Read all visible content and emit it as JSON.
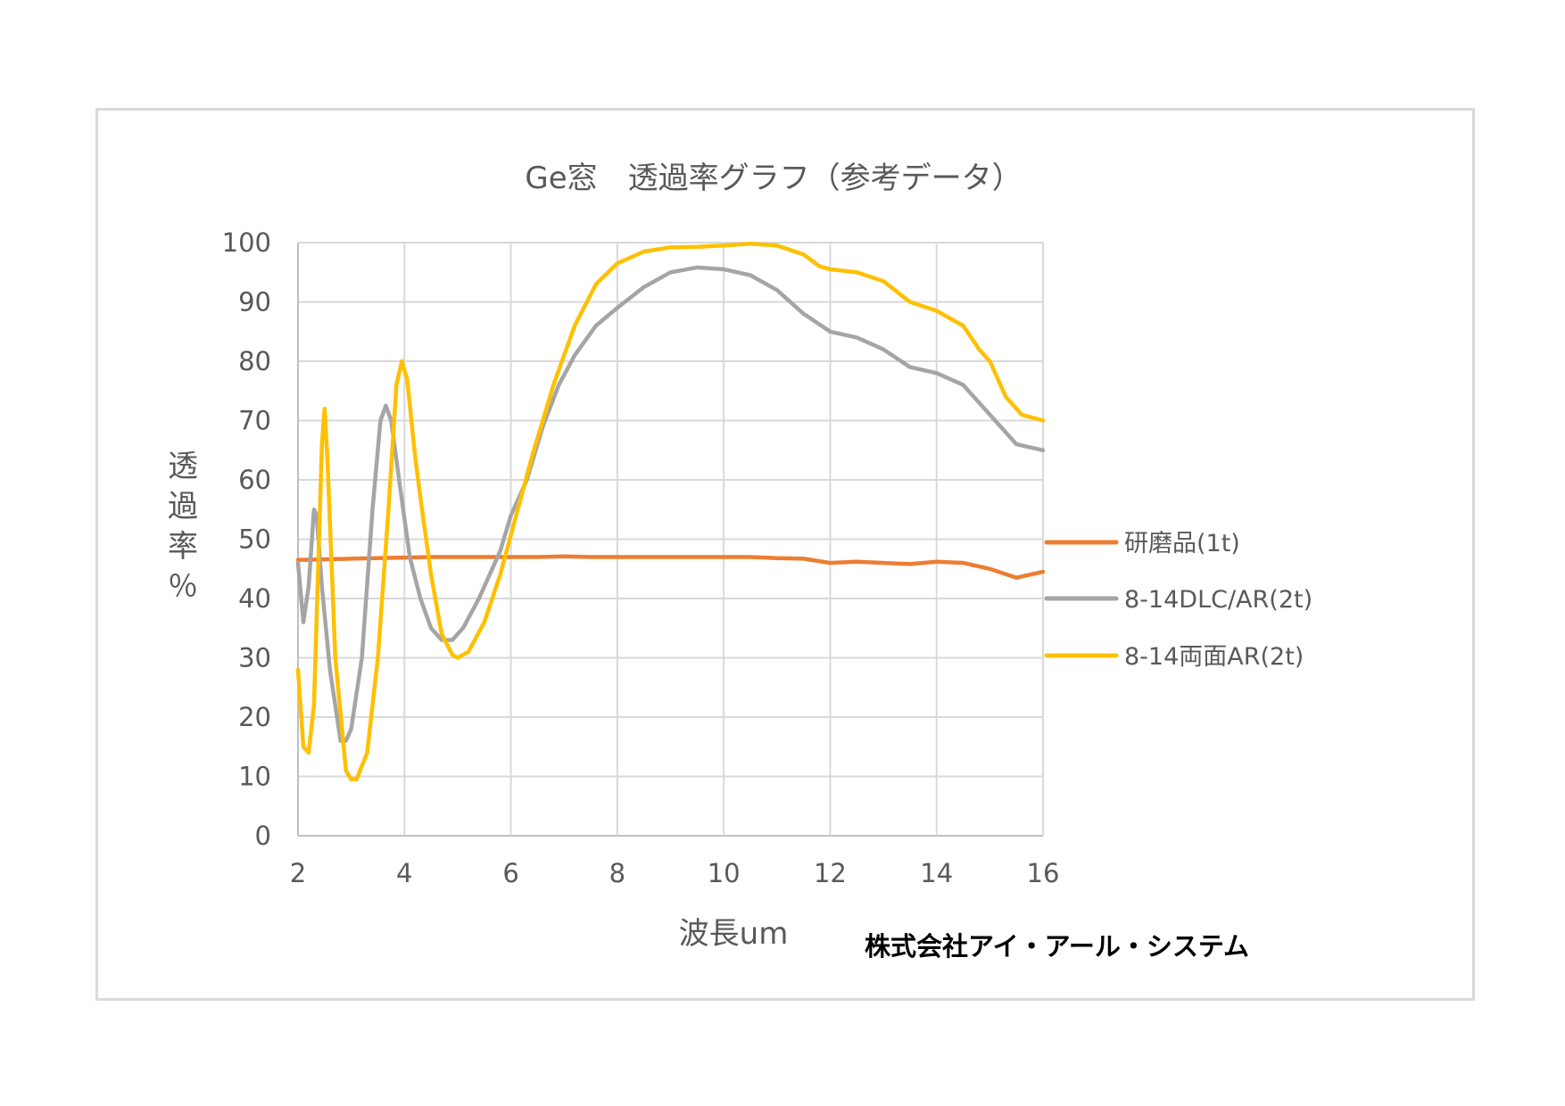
{
  "chart_data": {
    "type": "line",
    "title": "Ge窓　透過率グラフ（参考データ）",
    "xlabel": "波長um",
    "ylabel": "透過率％",
    "xlim": [
      2,
      16
    ],
    "ylim": [
      0,
      100
    ],
    "xticks": [
      "2",
      "4",
      "6",
      "8",
      "10",
      "12",
      "14",
      "16"
    ],
    "yticks": [
      "0",
      "10",
      "20",
      "30",
      "40",
      "50",
      "60",
      "70",
      "80",
      "90",
      "100"
    ],
    "grid": true,
    "legend_position": "right",
    "footer": "株式会社アイ・アール・システム",
    "series": [
      {
        "name": "研磨品(1t)",
        "color": "#ED7D31",
        "points": [
          [
            2.0,
            46.5
          ],
          [
            2.5,
            46.6
          ],
          [
            3.0,
            46.7
          ],
          [
            3.5,
            46.8
          ],
          [
            4.0,
            46.9
          ],
          [
            4.5,
            47.0
          ],
          [
            5.0,
            47.0
          ],
          [
            5.5,
            47.0
          ],
          [
            6.0,
            47.0
          ],
          [
            6.5,
            47.0
          ],
          [
            7.0,
            47.1
          ],
          [
            7.5,
            47.0
          ],
          [
            8.0,
            47.0
          ],
          [
            8.5,
            47.0
          ],
          [
            9.0,
            47.0
          ],
          [
            9.5,
            47.0
          ],
          [
            10.0,
            47.0
          ],
          [
            10.5,
            47.0
          ],
          [
            11.0,
            46.8
          ],
          [
            11.5,
            46.7
          ],
          [
            12.0,
            46.0
          ],
          [
            12.5,
            46.2
          ],
          [
            13.0,
            46.0
          ],
          [
            13.5,
            45.8
          ],
          [
            14.0,
            46.2
          ],
          [
            14.5,
            46.0
          ],
          [
            15.0,
            45.0
          ],
          [
            15.5,
            43.5
          ],
          [
            16.0,
            44.5
          ]
        ]
      },
      {
        "name": "8-14DLC/AR(2t)",
        "color": "#A5A5A5",
        "points": [
          [
            2.0,
            46.0
          ],
          [
            2.1,
            36.0
          ],
          [
            2.2,
            42.0
          ],
          [
            2.3,
            55.0
          ],
          [
            2.35,
            54.0
          ],
          [
            2.45,
            42.0
          ],
          [
            2.6,
            28.0
          ],
          [
            2.8,
            16.0
          ],
          [
            2.9,
            16.0
          ],
          [
            3.0,
            18.0
          ],
          [
            3.2,
            30.0
          ],
          [
            3.4,
            55.0
          ],
          [
            3.55,
            70.0
          ],
          [
            3.65,
            72.5
          ],
          [
            3.75,
            70.0
          ],
          [
            3.9,
            60.0
          ],
          [
            4.1,
            47.0
          ],
          [
            4.3,
            40.0
          ],
          [
            4.5,
            35.0
          ],
          [
            4.7,
            33.0
          ],
          [
            4.9,
            33.0
          ],
          [
            5.1,
            35.0
          ],
          [
            5.4,
            40.0
          ],
          [
            5.8,
            48.0
          ],
          [
            6.0,
            54.0
          ],
          [
            6.3,
            60.0
          ],
          [
            6.6,
            69.0
          ],
          [
            6.9,
            76.0
          ],
          [
            7.2,
            81.0
          ],
          [
            7.6,
            86.0
          ],
          [
            8.0,
            89.0
          ],
          [
            8.5,
            92.5
          ],
          [
            9.0,
            95.0
          ],
          [
            9.5,
            95.8
          ],
          [
            10.0,
            95.5
          ],
          [
            10.5,
            94.5
          ],
          [
            11.0,
            92.0
          ],
          [
            11.5,
            88.0
          ],
          [
            12.0,
            85.0
          ],
          [
            12.5,
            84.0
          ],
          [
            13.0,
            82.0
          ],
          [
            13.5,
            79.0
          ],
          [
            14.0,
            78.0
          ],
          [
            14.5,
            76.0
          ],
          [
            15.0,
            71.0
          ],
          [
            15.5,
            66.0
          ],
          [
            16.0,
            65.0
          ]
        ]
      },
      {
        "name": "8-14両面AR(2t)",
        "color": "#FFC000",
        "points": [
          [
            2.0,
            28.0
          ],
          [
            2.1,
            15.0
          ],
          [
            2.2,
            14.0
          ],
          [
            2.3,
            22.0
          ],
          [
            2.45,
            66.0
          ],
          [
            2.5,
            72.0
          ],
          [
            2.55,
            64.0
          ],
          [
            2.7,
            30.0
          ],
          [
            2.9,
            11.0
          ],
          [
            3.0,
            9.5
          ],
          [
            3.1,
            9.5
          ],
          [
            3.3,
            14.0
          ],
          [
            3.5,
            30.0
          ],
          [
            3.7,
            55.0
          ],
          [
            3.85,
            76.0
          ],
          [
            3.95,
            80.0
          ],
          [
            4.05,
            77.0
          ],
          [
            4.2,
            64.0
          ],
          [
            4.3,
            57.0
          ],
          [
            4.5,
            44.0
          ],
          [
            4.7,
            34.0
          ],
          [
            4.9,
            30.5
          ],
          [
            5.0,
            30.0
          ],
          [
            5.2,
            31.0
          ],
          [
            5.5,
            36.0
          ],
          [
            5.8,
            44.0
          ],
          [
            6.1,
            54.0
          ],
          [
            6.4,
            64.0
          ],
          [
            6.8,
            76.0
          ],
          [
            7.2,
            86.0
          ],
          [
            7.6,
            93.0
          ],
          [
            8.0,
            96.5
          ],
          [
            8.5,
            98.5
          ],
          [
            9.0,
            99.2
          ],
          [
            9.5,
            99.3
          ],
          [
            10.0,
            99.5
          ],
          [
            10.5,
            99.8
          ],
          [
            11.0,
            99.5
          ],
          [
            11.5,
            98.0
          ],
          [
            11.8,
            96.0
          ],
          [
            12.0,
            95.5
          ],
          [
            12.5,
            95.0
          ],
          [
            13.0,
            93.5
          ],
          [
            13.5,
            90.0
          ],
          [
            14.0,
            88.5
          ],
          [
            14.5,
            86.0
          ],
          [
            14.8,
            82.0
          ],
          [
            15.0,
            80.0
          ],
          [
            15.3,
            74.0
          ],
          [
            15.6,
            71.0
          ],
          [
            16.0,
            70.0
          ]
        ]
      }
    ]
  }
}
